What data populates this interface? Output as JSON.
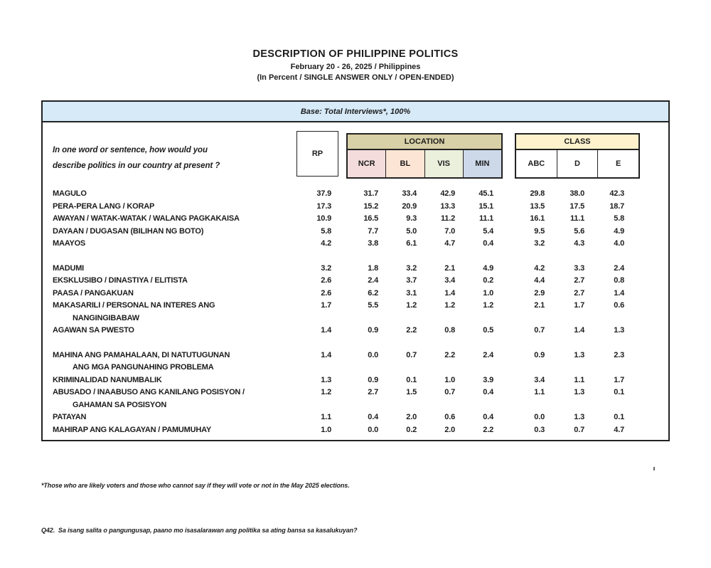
{
  "title": {
    "line1": "DESCRIPTION OF PHILIPPINE POLITICS",
    "line2": "February 20 - 26, 2025 / Philippines",
    "line3": "(In Percent / SINGLE ANSWER ONLY / OPEN-ENDED)"
  },
  "table": {
    "base_label": "Base: Total Interviews*, 100%",
    "question_line1": "In one word or sentence, how would you",
    "question_line2": "describe politics in our country at present ?",
    "col_rp": "RP",
    "group_location": "LOCATION",
    "group_class": "CLASS",
    "location_cols": [
      "NCR",
      "BL",
      "VIS",
      "MIN"
    ],
    "class_cols": [
      "ABC",
      "D",
      "E"
    ],
    "rows": [
      {
        "label": "MAGULO",
        "group_start": false,
        "values": [
          "37.9",
          "31.7",
          "33.4",
          "42.9",
          "45.1",
          "29.8",
          "38.0",
          "42.3"
        ]
      },
      {
        "label": "PERA-PERA LANG / KORAP",
        "group_start": false,
        "values": [
          "17.3",
          "15.2",
          "20.9",
          "13.3",
          "15.1",
          "13.5",
          "17.5",
          "18.7"
        ]
      },
      {
        "label": "AWAYAN / WATAK-WATAK / WALANG PAGKAKAISA",
        "group_start": false,
        "values": [
          "10.9",
          "16.5",
          "9.3",
          "11.2",
          "11.1",
          "16.1",
          "11.1",
          "5.8"
        ]
      },
      {
        "label": "DAYAAN / DUGASAN (BILIHAN NG BOTO)",
        "group_start": false,
        "values": [
          "5.8",
          "7.7",
          "5.0",
          "7.0",
          "5.4",
          "9.5",
          "5.6",
          "4.9"
        ]
      },
      {
        "label": "MAAYOS",
        "group_start": false,
        "values": [
          "4.2",
          "3.8",
          "6.1",
          "4.7",
          "0.4",
          "3.2",
          "4.3",
          "4.0"
        ]
      },
      {
        "label": "MADUMI",
        "group_start": true,
        "values": [
          "3.2",
          "1.8",
          "3.2",
          "2.1",
          "4.9",
          "4.2",
          "3.3",
          "2.4"
        ]
      },
      {
        "label": "EKSKLUSIBO / DINASTIYA / ELITISTA",
        "group_start": false,
        "values": [
          "2.6",
          "2.4",
          "3.7",
          "3.4",
          "0.2",
          "4.4",
          "2.7",
          "0.8"
        ]
      },
      {
        "label": "PAASA / PANGAKUAN",
        "group_start": false,
        "values": [
          "2.6",
          "6.2",
          "3.1",
          "1.4",
          "1.0",
          "2.9",
          "2.7",
          "1.4"
        ]
      },
      {
        "label": "MAKASARILI / PERSONAL NA INTERES ANG",
        "label2": "NANGINGIBABAW",
        "group_start": false,
        "values": [
          "1.7",
          "5.5",
          "1.2",
          "1.2",
          "1.2",
          "2.1",
          "1.7",
          "0.6"
        ]
      },
      {
        "label": "AGAWAN SA PWESTO",
        "group_start": false,
        "values": [
          "1.4",
          "0.9",
          "2.2",
          "0.8",
          "0.5",
          "0.7",
          "1.4",
          "1.3"
        ]
      },
      {
        "label": "MAHINA ANG PAMAHALAAN, DI NATUTUGUNAN",
        "label2": "ANG MGA PANGUNAHING PROBLEMA",
        "group_start": true,
        "values": [
          "1.4",
          "0.0",
          "0.7",
          "2.2",
          "2.4",
          "0.9",
          "1.3",
          "2.3"
        ]
      },
      {
        "label": "KRIMINALIDAD NANUMBALIK",
        "group_start": false,
        "values": [
          "1.3",
          "0.9",
          "0.1",
          "1.0",
          "3.9",
          "3.4",
          "1.1",
          "1.7"
        ]
      },
      {
        "label": "ABUSADO / INAABUSO ANG KANILANG POSISYON /",
        "label2": "GAHAMAN SA POSISYON",
        "group_start": false,
        "values": [
          "1.2",
          "2.7",
          "1.5",
          "0.7",
          "0.4",
          "1.1",
          "1.3",
          "0.1"
        ]
      },
      {
        "label": "PATAYAN",
        "group_start": false,
        "values": [
          "1.1",
          "0.4",
          "2.0",
          "0.6",
          "0.4",
          "0.0",
          "1.3",
          "0.1"
        ]
      },
      {
        "label": "MAHIRAP ANG KALAGAYAN / PAMUMUHAY",
        "group_start": false,
        "values": [
          "1.0",
          "0.0",
          "0.2",
          "2.0",
          "2.2",
          "0.3",
          "0.7",
          "4.7"
        ]
      }
    ]
  },
  "footnotes": {
    "note1": "*Those who are likely voters and those who cannot say if they will vote or not in the May 2025 elections.",
    "note2": "Q42.  Sa isang salita o pangungusap, paano mo isasalarawan ang politika sa ating bansa sa kasalukuyan?"
  },
  "colors": {
    "base_bar": "#d6eaf8",
    "location_header": "#d8d0a6",
    "ncr": "#f3dcdb",
    "bl": "#fce5d5",
    "vis": "#ebf0dd",
    "min": "#cdd9e9",
    "class_header": "#fdf2cc"
  }
}
